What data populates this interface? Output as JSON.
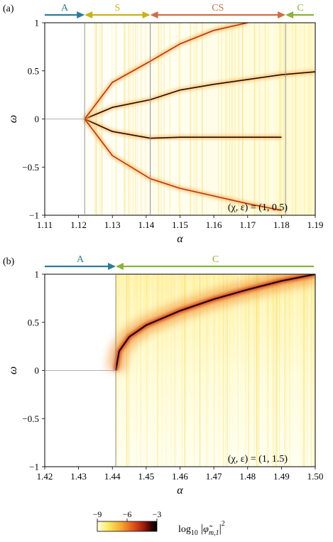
{
  "panels": [
    {
      "tag": "(a)",
      "param_label": "(χ, ε) = (1, 0.5)",
      "regimes": [
        {
          "label": "A",
          "color": "#2e7d94",
          "from": 1.11,
          "to": 1.1218,
          "dir": "right"
        },
        {
          "label": "S",
          "color": "#c7b21a",
          "from": 1.1218,
          "to": 1.1412,
          "dir": "both"
        },
        {
          "label": "CS",
          "color": "#cd6e47",
          "from": 1.1412,
          "to": 1.1812,
          "dir": "both"
        },
        {
          "label": "C",
          "color": "#8db13a",
          "from": 1.1812,
          "to": 1.19,
          "dir": "left"
        }
      ]
    },
    {
      "tag": "(b)",
      "param_label": "(χ, ε) = (1, 1.5)",
      "regimes": [
        {
          "label": "A",
          "color": "#2e7d94",
          "from": 1.42,
          "to": 1.441,
          "dir": "right"
        },
        {
          "label": "C",
          "color": "#8db13a",
          "from": 1.441,
          "to": 1.5,
          "dir": "left"
        }
      ]
    }
  ],
  "chart_data": [
    {
      "type": "heatmap",
      "xlabel": "α",
      "ylabel": "ω",
      "xlim": [
        1.11,
        1.19
      ],
      "ylim": [
        -1,
        1
      ],
      "xticks": [
        "1.11",
        "1.12",
        "1.13",
        "1.14",
        "1.15",
        "1.16",
        "1.17",
        "1.18",
        "1.19"
      ],
      "yticks": [
        "−1",
        "−0.5",
        "0",
        "0.5",
        "1"
      ],
      "transitions": [
        1.1218,
        1.1412,
        1.1812
      ],
      "ridges": [
        {
          "x": [
            1.1218,
            1.13,
            1.1412,
            1.15,
            1.16,
            1.17,
            1.18,
            1.19
          ],
          "y": [
            0,
            0.12,
            0.2,
            0.3,
            0.36,
            0.41,
            0.46,
            0.49
          ]
        },
        {
          "x": [
            1.1218,
            1.13,
            1.1412,
            1.15,
            1.16,
            1.17,
            1.18
          ],
          "y": [
            0,
            -0.13,
            -0.2,
            -0.19,
            -0.19,
            -0.19,
            -0.19
          ]
        },
        {
          "x": [
            1.1218,
            1.13,
            1.1412,
            1.15,
            1.16,
            1.17
          ],
          "y": [
            0,
            0.38,
            0.6,
            0.78,
            0.92,
            1.0
          ]
        },
        {
          "x": [
            1.1218,
            1.13,
            1.1412,
            1.15,
            1.16,
            1.17,
            1.18
          ],
          "y": [
            0,
            -0.38,
            -0.62,
            -0.72,
            -0.8,
            -0.88,
            -0.95
          ]
        }
      ]
    },
    {
      "type": "heatmap",
      "xlabel": "α",
      "ylabel": "ω",
      "xlim": [
        1.42,
        1.5
      ],
      "ylim": [
        -1,
        1
      ],
      "xticks": [
        "1.42",
        "1.43",
        "1.44",
        "1.45",
        "1.46",
        "1.47",
        "1.48",
        "1.49",
        "1.50"
      ],
      "yticks": [
        "−1",
        "−0.5",
        "0",
        "0.5",
        "1"
      ],
      "transitions": [
        1.441
      ],
      "ridges": [
        {
          "x": [
            1.441,
            1.442,
            1.445,
            1.45,
            1.46,
            1.47,
            1.48,
            1.49,
            1.5
          ],
          "y": [
            0.0,
            0.2,
            0.35,
            0.47,
            0.62,
            0.74,
            0.84,
            0.93,
            1.0
          ]
        }
      ]
    }
  ],
  "colorbar": {
    "ticks": [
      "−9",
      "−6",
      "−3"
    ],
    "range": [
      -9,
      -3
    ],
    "label_base": "log",
    "label_sub": "10",
    "label_var": "φ̃",
    "label_index": "m,1",
    "label_power": "2",
    "colors": [
      "#ffffe0",
      "#fbe65a",
      "#f4a832",
      "#e0561c",
      "#a31a0e",
      "#3a0505",
      "#000000"
    ]
  }
}
